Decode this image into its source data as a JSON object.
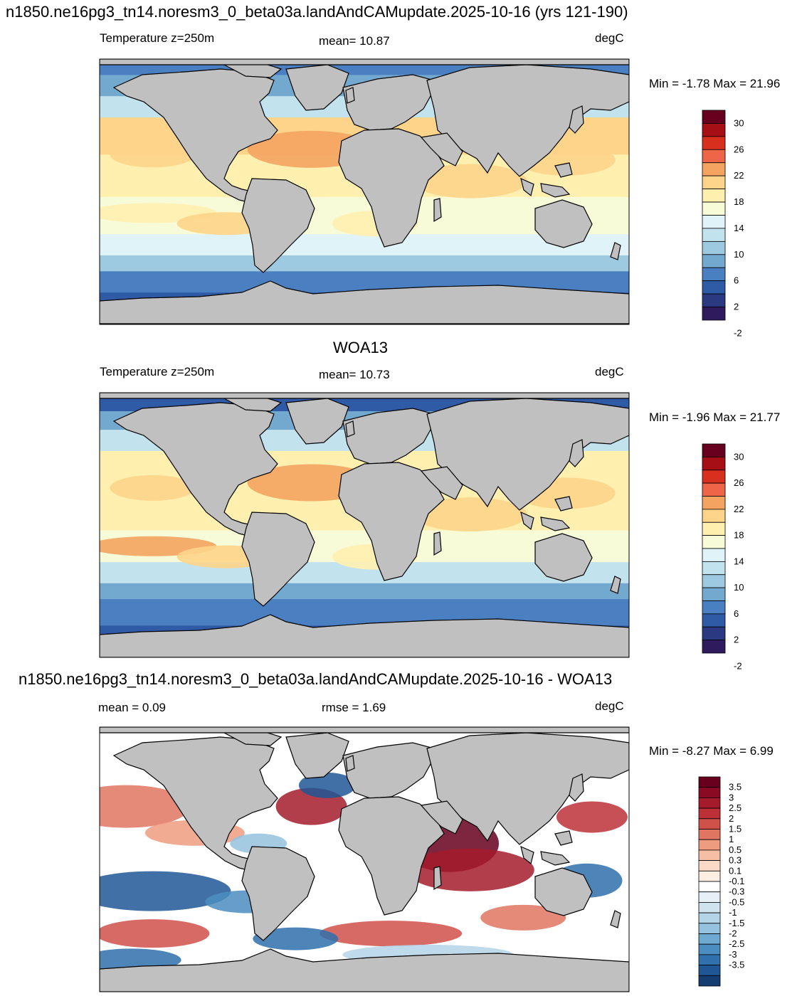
{
  "main_title": "n1850.ne16pg3_tn14.noresm3_0_beta03a.landAndCAMupdate.2025-10-16 (yrs 121-190)",
  "panels": [
    {
      "title": "",
      "left_label": "Temperature z=250m",
      "center_label": "mean=  10.87",
      "right_label": "degC",
      "minmax": "Min =  -1.78 Max =  21.96",
      "colorbar": {
        "labels": [
          "30",
          "26",
          "22",
          "18",
          "14",
          "10",
          "6",
          "2",
          "-2"
        ],
        "colors": [
          "#67001f",
          "#a50f15",
          "#d7301f",
          "#ef6548",
          "#f4a460",
          "#fdd48a",
          "#fff0b0",
          "#f8fbd8",
          "#e0f3f8",
          "#c2e3ee",
          "#9ecae1",
          "#74a9cf",
          "#4a7fc1",
          "#2f5aa5",
          "#2b3a80",
          "#2d1b5e"
        ]
      }
    },
    {
      "title": "WOA13",
      "left_label": "Temperature z=250m",
      "center_label": "mean=  10.73",
      "right_label": "degC",
      "minmax": "Min =  -1.96 Max =  21.77",
      "colorbar": {
        "labels": [
          "30",
          "26",
          "22",
          "18",
          "14",
          "10",
          "6",
          "2",
          "-2"
        ],
        "colors": [
          "#67001f",
          "#a50f15",
          "#d7301f",
          "#ef6548",
          "#f4a460",
          "#fdd48a",
          "#fff0b0",
          "#f8fbd8",
          "#e0f3f8",
          "#c2e3ee",
          "#9ecae1",
          "#74a9cf",
          "#4a7fc1",
          "#2f5aa5",
          "#2b3a80",
          "#2d1b5e"
        ]
      }
    },
    {
      "title": "n1850.ne16pg3_tn14.noresm3_0_beta03a.landAndCAMupdate.2025-10-16 - WOA13",
      "left_label": "mean =   0.09",
      "center_label": "rmse =   1.69",
      "right_label": "degC",
      "minmax": "Min =  -8.27 Max =   6.99",
      "colorbar": {
        "labels": [
          "3.5",
          "3",
          "2.5",
          "2",
          "1.5",
          "1",
          "0.5",
          "0.3",
          "0.1",
          "-0.1",
          "-0.3",
          "-0.5",
          "-1",
          "-1.5",
          "-2",
          "-2.5",
          "-3",
          "-3.5"
        ],
        "colors": [
          "#67001f",
          "#8b0a23",
          "#a51b2b",
          "#bd3038",
          "#d0504a",
          "#e07662",
          "#ee9c80",
          "#f6bea3",
          "#fbdac8",
          "#fdeee4",
          "#ffffff",
          "#e6f0f6",
          "#cfe3ef",
          "#b4d4e8",
          "#95c2de",
          "#6ea9d0",
          "#4b8dc0",
          "#2f70ad",
          "#1f5795",
          "#143e72"
        ]
      }
    }
  ],
  "map_colors": {
    "land": "#c0c0c0",
    "coast": "#000000"
  }
}
